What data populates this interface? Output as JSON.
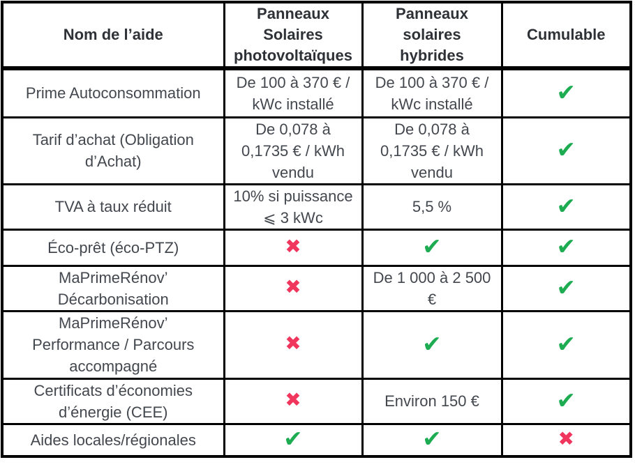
{
  "colors": {
    "check": "#1EAC52",
    "cross": "#F1365E",
    "border": "#000000",
    "header_text": "#2E3237",
    "body_text": "#43474E"
  },
  "marks": {
    "check": "✔",
    "cross": "✖"
  },
  "table": {
    "headers": [
      {
        "label": "Nom de l’aide"
      },
      {
        "label": "Panneaux\nSolaires\nphotovoltaïques"
      },
      {
        "label": "Panneaux\nsolaires\nhybrides"
      },
      {
        "label": "Cumulable"
      }
    ],
    "rows": [
      {
        "name": "Prime Autoconsommation",
        "pv": "De 100 à 370 € /\nkWc installé",
        "hybride": "De 100 à 370 € /\nkWc installé",
        "cumulable": "✔"
      },
      {
        "name": "Tarif d’achat (Obligation\nd’Achat)",
        "pv": "De 0,078 à\n0,1735 € / kWh\nvendu",
        "hybride": "De 0,078 à\n0,1735 € / kWh\nvendu",
        "cumulable": "✔"
      },
      {
        "name": "TVA à taux réduit",
        "pv": "10% si puissance\n⩽ 3 kWc",
        "hybride": "5,5 %",
        "cumulable": "✔"
      },
      {
        "name": "Éco-prêt (éco-PTZ)",
        "pv": "✖",
        "hybride": "✔",
        "cumulable": "✔"
      },
      {
        "name": "MaPrimeRénov’\nDécarbonisation",
        "pv": "✖",
        "hybride": "De 1 000 à 2 500\n€",
        "cumulable": "✔"
      },
      {
        "name": "MaPrimeRénov’\nPerformance / Parcours\naccompagné",
        "pv": "✖",
        "hybride": "✔",
        "cumulable": "✔"
      },
      {
        "name": "Certificats d’économies\nd’énergie (CEE)",
        "pv": "✖",
        "hybride": "Environ 150 €",
        "cumulable": "✔"
      },
      {
        "name": "Aides locales/régionales",
        "pv": "✔",
        "hybride": "✔",
        "cumulable": "✖"
      }
    ]
  }
}
